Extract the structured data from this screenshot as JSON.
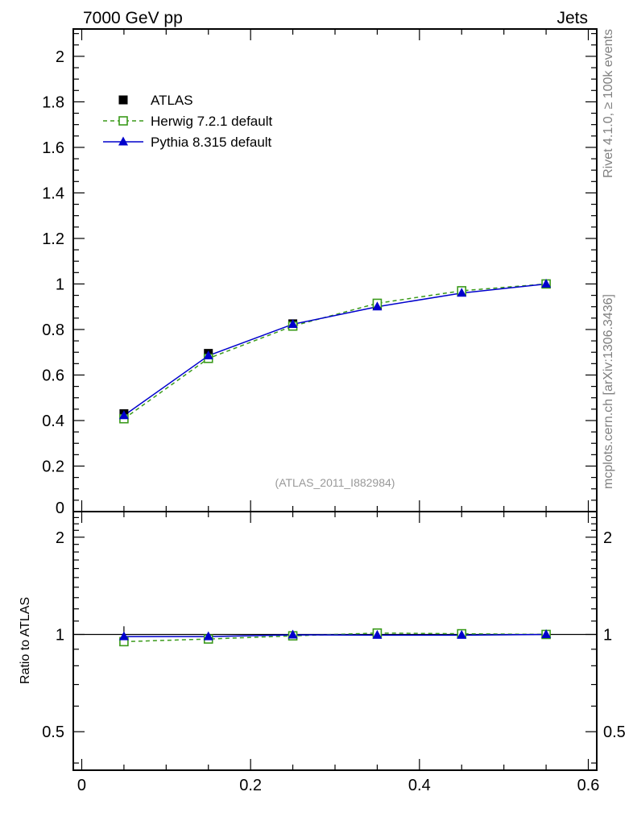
{
  "header": {
    "left": "7000 GeV pp",
    "right": "Jets"
  },
  "side_labels": {
    "top": "Rivet 4.1.0, ≥ 100k events",
    "bottom": "mcplots.cern.ch [arXiv:1306.3436]"
  },
  "watermark": "(ATLAS_2011_I882984)",
  "colors": {
    "data": "#000000",
    "herwig": "#3a9a1a",
    "pythia": "#0000cc",
    "side_text": "#808080"
  },
  "chart_data": [
    {
      "type": "line",
      "panel": "main",
      "xlim": [
        -0.01,
        0.61
      ],
      "ylim": [
        0,
        2.12
      ],
      "ytick_values": [
        0,
        0.2,
        0.4,
        0.6,
        0.8,
        1,
        1.2,
        1.4,
        1.6,
        1.8,
        2
      ],
      "ytick_labels": [
        "0",
        "0.2",
        "0.4",
        "0.6",
        "0.8",
        "1",
        "1.2",
        "1.4",
        "1.6",
        "1.8",
        "2"
      ],
      "legend_position": "top-left",
      "x": [
        0.05,
        0.15,
        0.25,
        0.35,
        0.45,
        0.55
      ],
      "series": [
        {
          "name": "ATLAS",
          "style": "marker-square-filled",
          "values": [
            0.43,
            0.695,
            0.825,
            0.905,
            0.965,
            1.0
          ]
        },
        {
          "name": "Herwig 7.2.1 default",
          "style": "dashed-open-square",
          "values": [
            0.408,
            0.673,
            0.815,
            0.915,
            0.97,
            1.0
          ]
        },
        {
          "name": "Pythia 8.315 default",
          "style": "solid-filled-triangle",
          "values": [
            0.422,
            0.685,
            0.823,
            0.9,
            0.96,
            1.0
          ]
        }
      ]
    },
    {
      "type": "line",
      "panel": "ratio",
      "ylabel": "Ratio to ATLAS",
      "xlim": [
        -0.01,
        0.61
      ],
      "ylim": [
        0.38,
        2.4
      ],
      "yscale": "log",
      "ytick_values": [
        0.5,
        1,
        2
      ],
      "ytick_labels": [
        "0.5",
        "1",
        "2"
      ],
      "xtick_values": [
        0,
        0.2,
        0.4,
        0.6
      ],
      "xtick_labels": [
        "0",
        "0.2",
        "0.4",
        "0.6"
      ],
      "x": [
        0.05,
        0.15,
        0.25,
        0.35,
        0.45,
        0.55
      ],
      "series": [
        {
          "name": "Herwig 7.2.1 default",
          "values": [
            0.95,
            0.968,
            0.99,
            1.01,
            1.005,
            1.0
          ]
        },
        {
          "name": "Pythia 8.315 default",
          "values": [
            0.985,
            0.985,
            0.997,
            0.995,
            0.995,
            1.0
          ]
        }
      ],
      "data_errors": [
        0.06,
        0.01,
        0.008,
        0.006,
        0.005,
        0.004
      ]
    }
  ]
}
